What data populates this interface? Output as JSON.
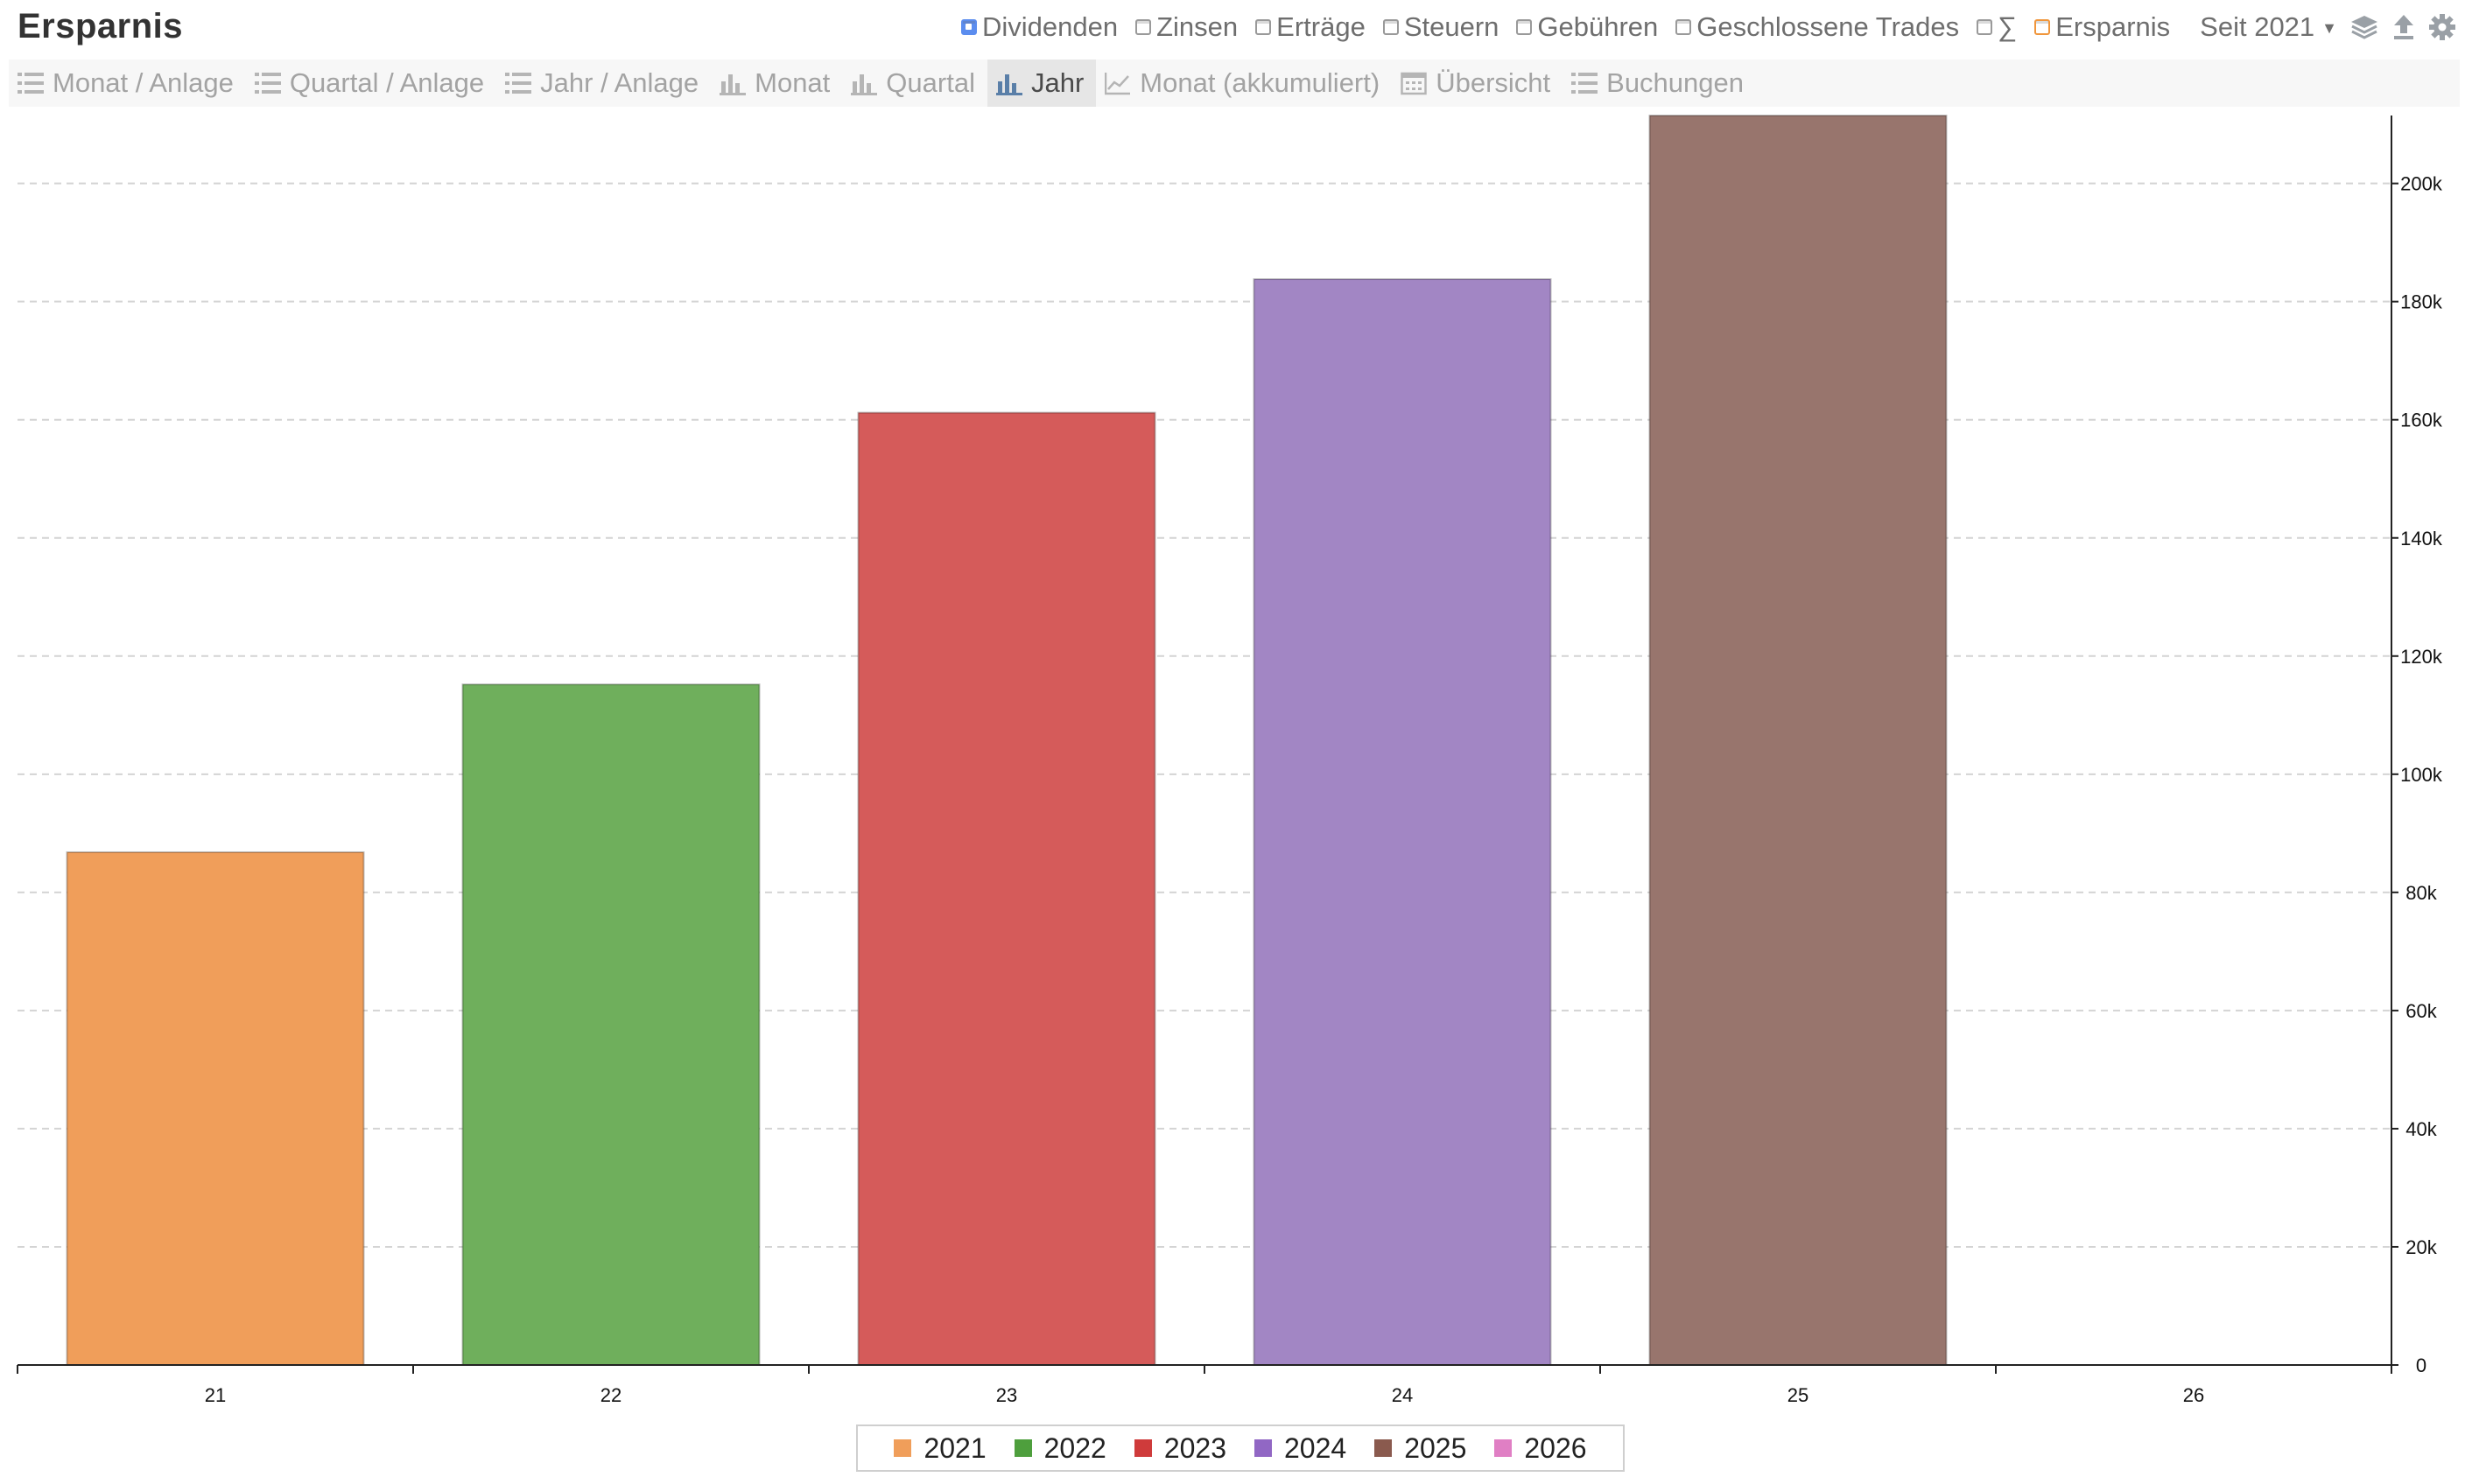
{
  "app": {
    "title": "Ersparnis"
  },
  "filters": [
    {
      "label": "Dividenden",
      "checked": true,
      "style": "checked"
    },
    {
      "label": "Zinsen",
      "checked": false,
      "style": ""
    },
    {
      "label": "Erträge",
      "checked": false,
      "style": ""
    },
    {
      "label": "Steuern",
      "checked": false,
      "style": ""
    },
    {
      "label": "Gebühren",
      "checked": false,
      "style": ""
    },
    {
      "label": "Geschlossene Trades",
      "checked": false,
      "style": ""
    },
    {
      "label": "∑",
      "checked": false,
      "style": ""
    },
    {
      "label": "Ersparnis",
      "checked": false,
      "style": "orange"
    }
  ],
  "year_select": {
    "value": "Seit 2021"
  },
  "toolbar_icons": [
    "layers-icon",
    "upload-icon",
    "gear-icon"
  ],
  "tabs": [
    {
      "label": "Monat / Anlage",
      "icon": "list-icon",
      "active": false
    },
    {
      "label": "Quartal / Anlage",
      "icon": "list-icon",
      "active": false
    },
    {
      "label": "Jahr / Anlage",
      "icon": "list-icon",
      "active": false
    },
    {
      "label": "Monat",
      "icon": "bar-chart-icon",
      "active": false
    },
    {
      "label": "Quartal",
      "icon": "bar-chart-icon",
      "active": false
    },
    {
      "label": "Jahr",
      "icon": "bar-chart-icon",
      "active": true
    },
    {
      "label": "Monat (akkumuliert)",
      "icon": "line-chart-icon",
      "active": false
    },
    {
      "label": "Übersicht",
      "icon": "calendar-icon",
      "active": false
    },
    {
      "label": "Buchungen",
      "icon": "list-icon",
      "active": false
    }
  ],
  "chart_data": {
    "type": "bar",
    "categories": [
      "21",
      "22",
      "23",
      "24",
      "25",
      "26"
    ],
    "values": [
      86800,
      115200,
      161200,
      183800,
      211500,
      0
    ],
    "colors": [
      "#f09e5a",
      "#6faf5c",
      "#d55b5a",
      "#a286c4",
      "#98756d",
      "#e07fc4"
    ],
    "yticks": [
      "0",
      "20k",
      "40k",
      "60k",
      "80k",
      "100k",
      "120k",
      "140k",
      "160k",
      "180k",
      "200k"
    ],
    "ylim": [
      0,
      211500
    ],
    "grid": true,
    "legend_position": "bottom",
    "legend": [
      "2021",
      "2022",
      "2023",
      "2024",
      "2025",
      "2026"
    ],
    "xlabel": "",
    "ylabel": ""
  }
}
